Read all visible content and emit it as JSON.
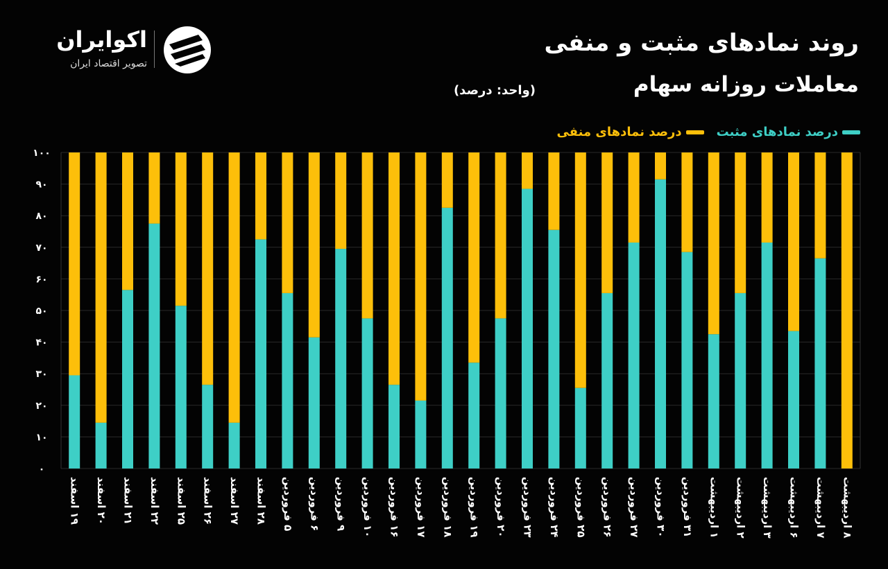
{
  "header": {
    "title_line1": "روند نمادهای مثبت و منفی",
    "title_line2": "معاملات روزانه سهام",
    "unit": "(واحد: درصد)"
  },
  "brand": {
    "name": "اکوایران",
    "tagline": "تصویر اقتصاد ایران"
  },
  "legend": {
    "positive": "درصد نمادهای مثبت",
    "negative": "درصد نمادهای منفی"
  },
  "colors": {
    "positive": "#3ECFC6",
    "negative": "#FDBF0A",
    "background": "#030303"
  },
  "chart_data": {
    "type": "bar",
    "stacked": true,
    "title": "روند نمادهای مثبت و منفی معاملات روزانه سهام",
    "ylim": [
      0,
      100
    ],
    "yticks": [
      "۰",
      "۱۰",
      "۲۰",
      "۳۰",
      "۴۰",
      "۵۰",
      "۶۰",
      "۷۰",
      "۸۰",
      "۹۰",
      "۱۰۰"
    ],
    "categories": [
      [
        "۱۹",
        "اسفند"
      ],
      [
        "۲۰",
        "اسفند"
      ],
      [
        "۲۱",
        "اسفند"
      ],
      [
        "۲۲",
        "اسفند"
      ],
      [
        "۲۵",
        "اسفند"
      ],
      [
        "۲۶",
        "اسفند"
      ],
      [
        "۲۷",
        "اسفند"
      ],
      [
        "۲۸",
        "اسفند"
      ],
      [
        "۵",
        "فروردین"
      ],
      [
        "۶",
        "فروردین"
      ],
      [
        "۹",
        "فروردین"
      ],
      [
        "۱۰",
        "فروردین"
      ],
      [
        "۱۶",
        "فروردین"
      ],
      [
        "۱۷",
        "فروردین"
      ],
      [
        "۱۸",
        "فروردین"
      ],
      [
        "۱۹",
        "فروردین"
      ],
      [
        "۲۰",
        "فروردین"
      ],
      [
        "۲۳",
        "فروردین"
      ],
      [
        "۲۴",
        "فروردین"
      ],
      [
        "۲۵",
        "فروردین"
      ],
      [
        "۲۶",
        "فروردین"
      ],
      [
        "۲۷",
        "فروردین"
      ],
      [
        "۳۰",
        "فروردین"
      ],
      [
        "۳۱",
        "فروردین"
      ],
      [
        "۱",
        "اردیبهشت"
      ],
      [
        "۲",
        "اردیبهشت"
      ],
      [
        "۳",
        "اردیبهشت"
      ],
      [
        "۶",
        "اردیبهشت"
      ],
      [
        "۷",
        "اردیبهشت"
      ],
      [
        "۸",
        "اردیبهشت"
      ]
    ],
    "series": [
      {
        "name": "درصد نمادهای مثبت",
        "values": [
          29.5,
          14.5,
          56.5,
          77.5,
          51.5,
          26.5,
          14.5,
          72.5,
          55.5,
          41.5,
          69.5,
          47.5,
          26.5,
          21.5,
          82.5,
          33.5,
          47.5,
          88.5,
          75.5,
          25.5,
          55.5,
          71.5,
          91.5,
          68.5,
          42.5,
          55.5,
          71.5,
          43.5,
          66.5,
          0
        ]
      },
      {
        "name": "درصد نمادهای منفی",
        "values": [
          70.5,
          85.5,
          43.5,
          22.5,
          48.5,
          73.5,
          85.5,
          27.5,
          44.5,
          58.5,
          30.5,
          52.5,
          73.5,
          78.5,
          17.5,
          66.5,
          52.5,
          11.5,
          24.5,
          74.5,
          44.5,
          28.5,
          8.5,
          31.5,
          57.5,
          44.5,
          28.5,
          56.5,
          33.5,
          100
        ]
      }
    ]
  }
}
